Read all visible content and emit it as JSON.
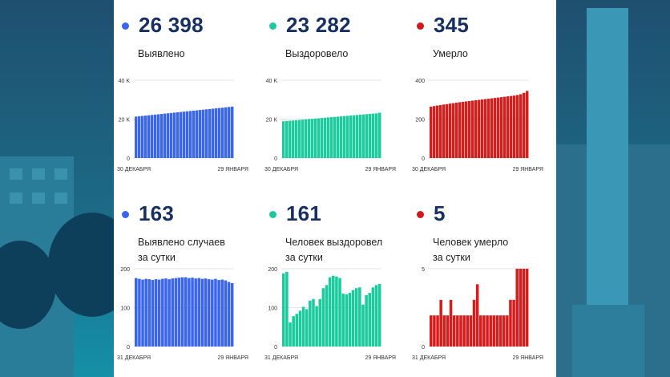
{
  "colors": {
    "blue": "#3a66ef",
    "teal": "#1bcb9d",
    "red": "#d51d1d",
    "dot_blue": "#3a66ef",
    "dot_teal": "#1fc7a0",
    "dot_red": "#d0191e"
  },
  "cards": [
    {
      "value": "26 398",
      "label": "Выявлено",
      "color": "blue",
      "chart_data": {
        "type": "bar",
        "y_ticks": [
          "40 K",
          "20 K",
          "0"
        ],
        "ylim": [
          0,
          40000
        ],
        "x_start": "30 ДЕКАБРЯ",
        "x_end": "29 ЯНВАРЯ",
        "values": [
          21300,
          21470,
          21640,
          21810,
          21980,
          22150,
          22320,
          22490,
          22660,
          22830,
          23000,
          23170,
          23340,
          23510,
          23680,
          23850,
          24020,
          24190,
          24360,
          24530,
          24700,
          24870,
          25040,
          25210,
          25380,
          25550,
          25720,
          25890,
          26060,
          26230,
          26398
        ]
      }
    },
    {
      "value": "23 282",
      "label": "Выздоровело",
      "color": "teal",
      "chart_data": {
        "type": "bar",
        "y_ticks": [
          "40 K",
          "20 K",
          "0"
        ],
        "ylim": [
          0,
          40000
        ],
        "x_start": "30 ДЕКАБРЯ",
        "x_end": "29 ЯНВАРЯ",
        "values": [
          18900,
          19040,
          19180,
          19320,
          19460,
          19600,
          19740,
          19880,
          20020,
          20160,
          20300,
          20440,
          20580,
          20720,
          20860,
          21000,
          21140,
          21280,
          21420,
          21560,
          21700,
          21840,
          21980,
          22120,
          22260,
          22400,
          22540,
          22680,
          22820,
          22960,
          23282
        ]
      }
    },
    {
      "value": "345",
      "label": "Умерло",
      "color": "red",
      "chart_data": {
        "type": "bar",
        "y_ticks": [
          "400",
          "200",
          "0"
        ],
        "ylim": [
          0,
          400
        ],
        "x_start": "30 ДЕКАБРЯ",
        "x_end": "29 ЯНВАРЯ",
        "values": [
          264,
          267,
          270,
          272,
          275,
          277,
          280,
          282,
          285,
          287,
          289,
          291,
          293,
          295,
          297,
          299,
          301,
          303,
          305,
          307,
          309,
          311,
          313,
          315,
          317,
          319,
          321,
          324,
          328,
          335,
          345
        ]
      }
    },
    {
      "value": "163",
      "label": "Выявлено случаев\nза сутки",
      "color": "blue",
      "chart_data": {
        "type": "bar",
        "y_ticks": [
          "200",
          "100",
          "0"
        ],
        "ylim": [
          0,
          200
        ],
        "x_start": "31 ДЕКАБРЯ",
        "x_end": "29 ЯНВАРЯ",
        "values": [
          176,
          174,
          172,
          174,
          173,
          171,
          173,
          172,
          174,
          175,
          173,
          175,
          176,
          177,
          178,
          178,
          176,
          177,
          175,
          176,
          174,
          175,
          173,
          172,
          174,
          171,
          172,
          170,
          166,
          163
        ]
      }
    },
    {
      "value": "161",
      "label": "Человек выздоровел\nза сутки",
      "color": "teal",
      "chart_data": {
        "type": "bar",
        "y_ticks": [
          "200",
          "100",
          "0"
        ],
        "ylim": [
          0,
          200
        ],
        "x_start": "31 ДЕКАБРЯ",
        "x_end": "29 ЯНВАРЯ",
        "values": [
          188,
          192,
          62,
          78,
          84,
          92,
          102,
          96,
          118,
          122,
          104,
          122,
          150,
          158,
          178,
          182,
          180,
          176,
          136,
          134,
          138,
          145,
          150,
          152,
          108,
          132,
          138,
          152,
          158,
          161
        ]
      }
    },
    {
      "value": "5",
      "label": "Человек умерло\nза сутки",
      "color": "red",
      "chart_data": {
        "type": "bar",
        "y_ticks": [
          "5",
          "0"
        ],
        "ylim": [
          0,
          5
        ],
        "x_start": "31 ДЕКАБРЯ",
        "x_end": "29 ЯНВАРЯ",
        "values": [
          2,
          2,
          2,
          3,
          2,
          2,
          3,
          2,
          2,
          2,
          2,
          2,
          2,
          3,
          4,
          2,
          2,
          2,
          2,
          2,
          2,
          2,
          2,
          2,
          3,
          3,
          5,
          5,
          5,
          5
        ]
      }
    }
  ]
}
